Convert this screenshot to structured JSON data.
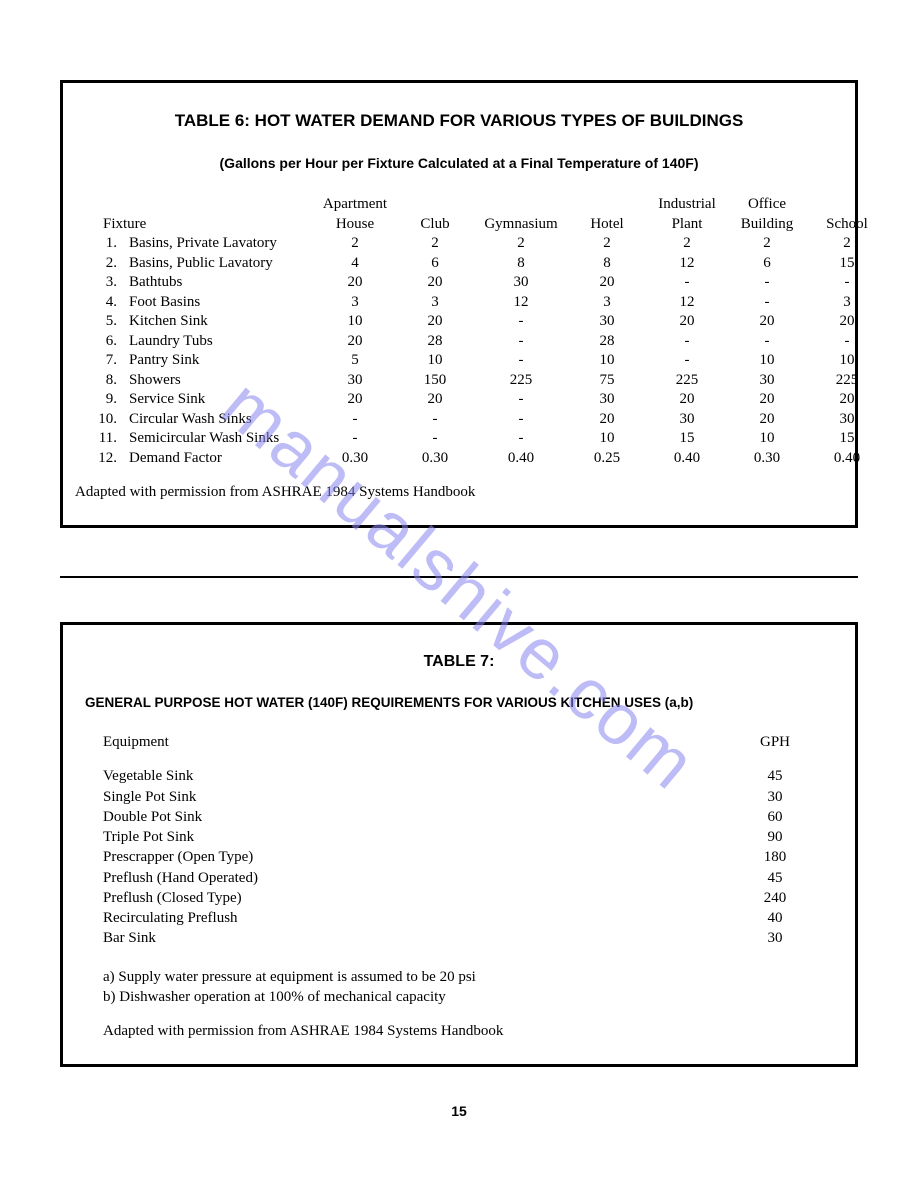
{
  "watermark": "manualshive.com",
  "page_number": "15",
  "table6": {
    "title": "TABLE 6: HOT WATER DEMAND FOR VARIOUS TYPES OF BUILDINGS",
    "subtitle": "(Gallons per Hour per Fixture Calculated at a Final Temperature of 140F)",
    "col_top": [
      "",
      "Apartment",
      "",
      "",
      "",
      "Industrial",
      "Office",
      ""
    ],
    "col_head": [
      "Fixture",
      "House",
      "Club",
      "Gymnasium",
      "Hotel",
      "Plant",
      "Building",
      "School"
    ],
    "rows": [
      {
        "n": "1.",
        "name": "Basins, Private Lavatory",
        "v": [
          "2",
          "2",
          "2",
          "2",
          "2",
          "2",
          "2"
        ]
      },
      {
        "n": "2.",
        "name": "Basins, Public Lavatory",
        "v": [
          "4",
          "6",
          "8",
          "8",
          "12",
          "6",
          "15"
        ]
      },
      {
        "n": "3.",
        "name": "Bathtubs",
        "v": [
          "20",
          "20",
          "30",
          "20",
          "-",
          "-",
          "-"
        ]
      },
      {
        "n": "4.",
        "name": "Foot Basins",
        "v": [
          "3",
          "3",
          "12",
          "3",
          "12",
          "-",
          "3"
        ]
      },
      {
        "n": "5.",
        "name": "Kitchen Sink",
        "v": [
          "10",
          "20",
          "-",
          "30",
          "20",
          "20",
          "20"
        ]
      },
      {
        "n": "6.",
        "name": "Laundry Tubs",
        "v": [
          "20",
          "28",
          "-",
          "28",
          "-",
          "-",
          "-"
        ]
      },
      {
        "n": "7.",
        "name": "Pantry Sink",
        "v": [
          "5",
          "10",
          "-",
          "10",
          "-",
          "10",
          "10"
        ]
      },
      {
        "n": "8.",
        "name": "Showers",
        "v": [
          "30",
          "150",
          "225",
          "75",
          "225",
          "30",
          "225"
        ]
      },
      {
        "n": "9.",
        "name": "Service Sink",
        "v": [
          "20",
          "20",
          "-",
          "30",
          "20",
          "20",
          "20"
        ]
      },
      {
        "n": "10.",
        "name": "Circular Wash Sinks",
        "v": [
          "-",
          "-",
          "-",
          "20",
          "30",
          "20",
          "30"
        ]
      },
      {
        "n": "11.",
        "name": "Semicircular Wash Sinks",
        "v": [
          "-",
          "-",
          "-",
          "10",
          "15",
          "10",
          "15"
        ]
      },
      {
        "n": "12.",
        "name": "Demand Factor",
        "v": [
          "0.30",
          "0.30",
          "0.40",
          "0.25",
          "0.40",
          "0.30",
          "0.40"
        ]
      }
    ],
    "source": "Adapted with permission from ASHRAE 1984 Systems Handbook"
  },
  "table7": {
    "title": "TABLE 7:",
    "subtitle": "GENERAL PURPOSE HOT WATER (140F) REQUIREMENTS FOR VARIOUS KITCHEN USES (a,b)",
    "col_equipment": "Equipment",
    "col_gph": "GPH",
    "rows": [
      {
        "name": "Vegetable Sink",
        "v": "45"
      },
      {
        "name": "Single Pot Sink",
        "v": "30"
      },
      {
        "name": "Double Pot Sink",
        "v": "60"
      },
      {
        "name": "Triple Pot Sink",
        "v": "90"
      },
      {
        "name": "Prescrapper (Open Type)",
        "v": "180"
      },
      {
        "name": "Preflush (Hand Operated)",
        "v": "45"
      },
      {
        "name": "Preflush (Closed Type)",
        "v": "240"
      },
      {
        "name": "Recirculating Preflush",
        "v": "40"
      },
      {
        "name": "Bar Sink",
        "v": "30"
      }
    ],
    "note_a": "a) Supply water pressure at equipment is assumed to be 20 psi",
    "note_b": "b) Dishwasher operation at 100% of mechanical capacity",
    "source": "Adapted with permission from ASHRAE 1984 Systems Handbook"
  }
}
